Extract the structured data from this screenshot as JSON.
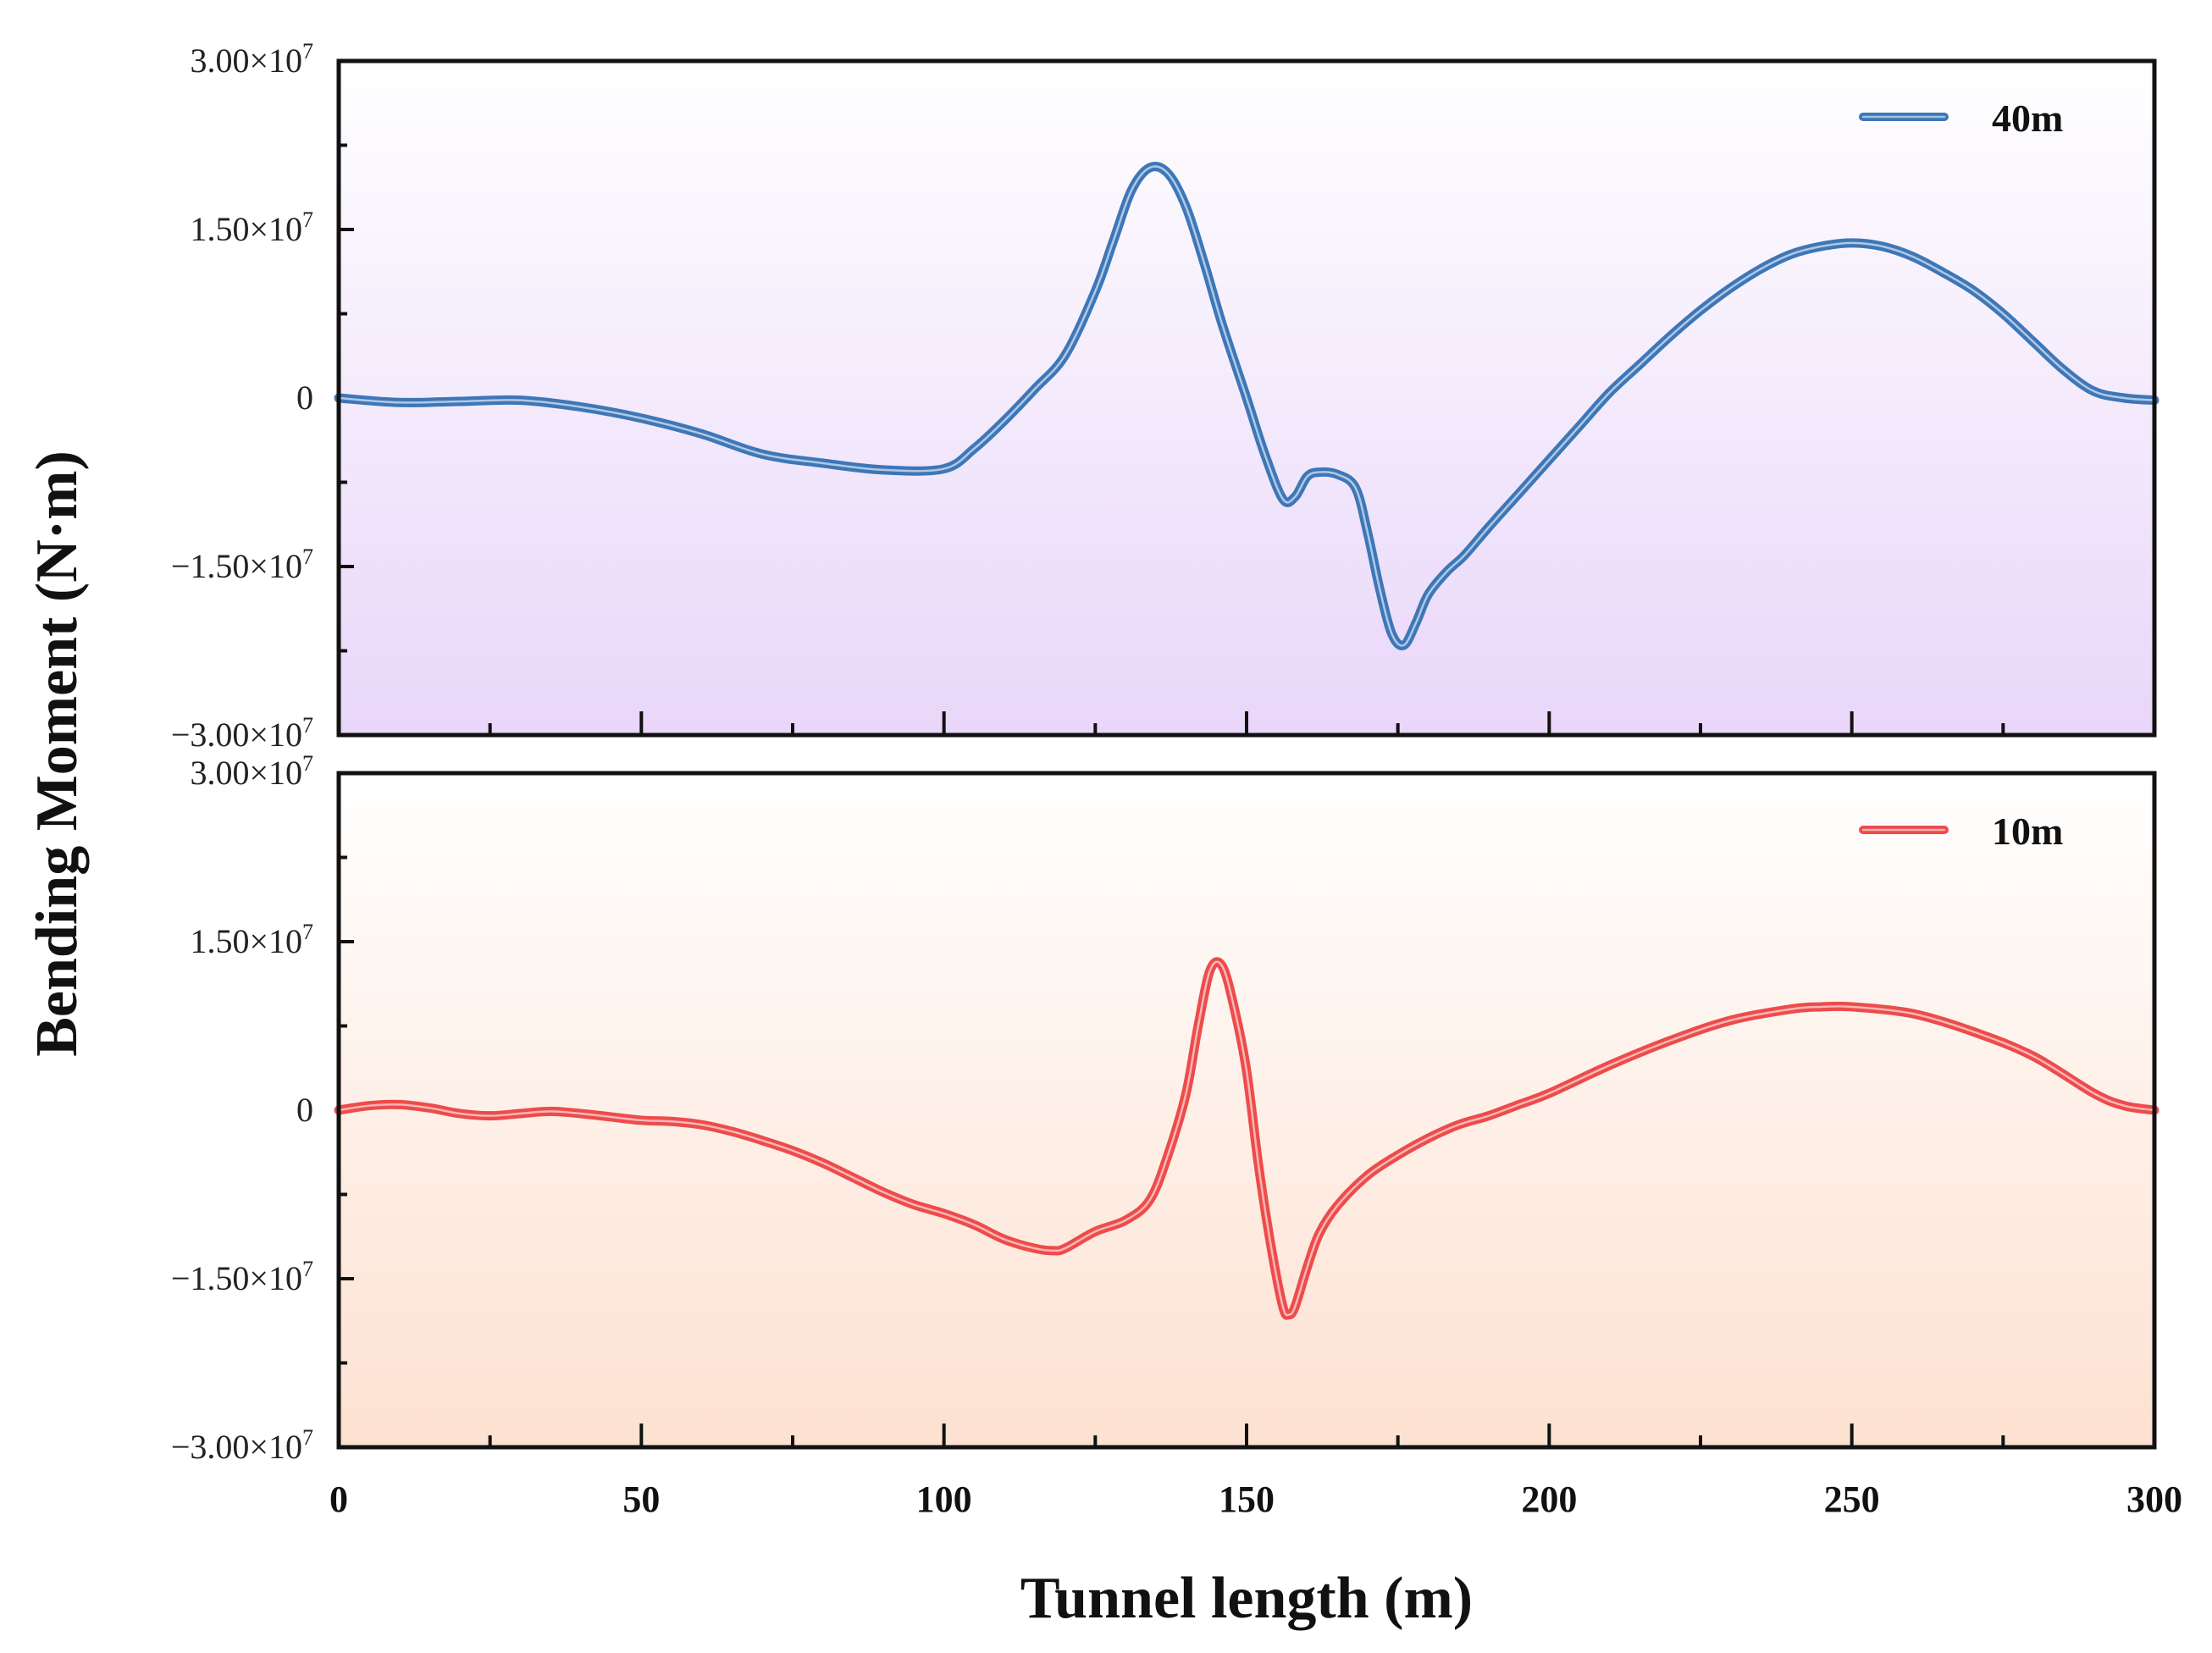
{
  "chart_data": {
    "type": "line",
    "xlabel": "Tunnel length (m)",
    "ylabel": "Bending Moment (N·m)",
    "xlim": [
      0,
      300
    ],
    "x_ticks": [
      0,
      50,
      100,
      150,
      200,
      250,
      300
    ],
    "x_tick_labels": [
      "0",
      "50",
      "100",
      "150",
      "200",
      "250",
      "300"
    ],
    "y_ticks": [
      -30000000,
      -15000000,
      0,
      15000000,
      30000000
    ],
    "y_tick_labels": [
      {
        "mantissa": "−3.00×10",
        "exp": "7"
      },
      {
        "mantissa": "−1.50×10",
        "exp": "7"
      },
      {
        "mantissa": "0",
        "exp": ""
      },
      {
        "mantissa": "1.50×10",
        "exp": "7"
      },
      {
        "mantissa": "3.00×10",
        "exp": "7"
      }
    ],
    "panels": [
      {
        "legend_label": "40m",
        "legend_position": "top-right",
        "color": "#3d77b8",
        "background_top": "#ffffff",
        "background_bottom": "#e9d6f9",
        "ylim": [
          -30000000,
          30000000
        ],
        "series": [
          {
            "name": "40m",
            "x": [
              0,
              10,
              20,
              30,
              40,
              50,
              60,
              70,
              80,
              90,
              100,
              105,
              110,
              115,
              120,
              125,
              128,
              131,
              134,
              137,
              140,
              143,
              146,
              150,
              153,
              156,
              158,
              160,
              162,
              165,
              168,
              170,
              172,
              174,
              176,
              178,
              180,
              183,
              186,
              190,
              195,
              200,
              205,
              210,
              215,
              220,
              225,
              230,
              235,
              240,
              245,
              250,
              255,
              260,
              265,
              270,
              275,
              280,
              285,
              290,
              295,
              300
            ],
            "y": [
              0,
              -400000,
              -300000,
              -200000,
              -800000,
              -1800000,
              -3200000,
              -5000000,
              -5800000,
              -6400000,
              -6300000,
              -4500000,
              -2000000,
              800000,
              3800000,
              9500000,
              14000000,
              18500000,
              20500000,
              20000000,
              17000000,
              12000000,
              6500000,
              0,
              -5000000,
              -9000000,
              -8800000,
              -7000000,
              -6600000,
              -6800000,
              -8000000,
              -12000000,
              -17000000,
              -21000000,
              -22000000,
              -20000000,
              -17500000,
              -15500000,
              -14000000,
              -11500000,
              -8500000,
              -5500000,
              -2500000,
              500000,
              3000000,
              5500000,
              7800000,
              9800000,
              11500000,
              12800000,
              13500000,
              13800000,
              13500000,
              12600000,
              11200000,
              9600000,
              7500000,
              5000000,
              2500000,
              600000,
              0,
              -200000
            ]
          }
        ]
      },
      {
        "legend_label": "10m",
        "legend_position": "top-right",
        "color": "#ee4b4b",
        "background_top": "#ffffff",
        "background_bottom": "#fde1d1",
        "ylim": [
          -30000000,
          30000000
        ],
        "series": [
          {
            "name": "10m",
            "x": [
              0,
              5,
              10,
              15,
              20,
              25,
              30,
              35,
              40,
              45,
              50,
              55,
              60,
              65,
              70,
              75,
              80,
              85,
              90,
              95,
              100,
              105,
              110,
              115,
              118,
              120,
              125,
              130,
              134,
              137,
              140,
              142,
              144,
              146,
              148,
              150,
              152,
              154,
              156,
              157,
              158,
              160,
              162,
              165,
              170,
              175,
              180,
              185,
              190,
              195,
              200,
              210,
              220,
              230,
              240,
              245,
              250,
              260,
              270,
              280,
              290,
              295,
              300
            ],
            "y": [
              0,
              400000,
              500000,
              200000,
              -300000,
              -500000,
              -300000,
              -100000,
              -300000,
              -600000,
              -900000,
              -1000000,
              -1300000,
              -1900000,
              -2700000,
              -3600000,
              -4700000,
              -6000000,
              -7300000,
              -8400000,
              -9200000,
              -10200000,
              -11500000,
              -12300000,
              -12500000,
              -12300000,
              -10800000,
              -9800000,
              -8000000,
              -4000000,
              1500000,
              7500000,
              12500000,
              12800000,
              9000000,
              3500000,
              -5000000,
              -12000000,
              -17500000,
              -18200000,
              -17500000,
              -14000000,
              -11000000,
              -8500000,
              -5800000,
              -4000000,
              -2500000,
              -1300000,
              -500000,
              500000,
              1500000,
              4000000,
              6200000,
              8000000,
              9000000,
              9200000,
              9200000,
              8600000,
              7000000,
              4800000,
              1500000,
              400000,
              0
            ]
          }
        ]
      }
    ]
  }
}
